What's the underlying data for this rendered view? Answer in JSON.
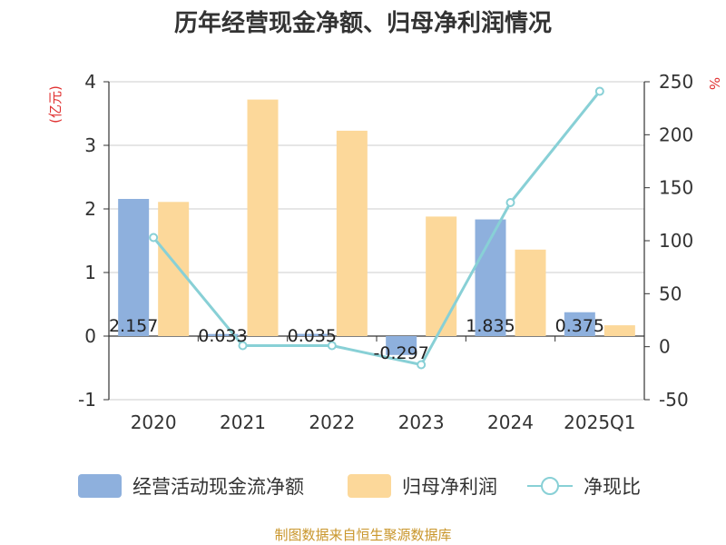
{
  "chart_data": {
    "type": "bar",
    "title": "历年经营现金净额、归母净利润情况",
    "categories": [
      "2020",
      "2021",
      "2022",
      "2023",
      "2024",
      "2025Q1"
    ],
    "series": [
      {
        "name": "经营活动现金流净额",
        "type": "bar",
        "axis": "left",
        "color": "#8eb0dd",
        "values": [
          2.157,
          0.033,
          0.035,
          -0.297,
          1.835,
          0.375
        ],
        "labels": [
          "2.157",
          "0.033",
          "0.035",
          "-0.297",
          "1.835",
          "0.375"
        ]
      },
      {
        "name": "归母净利润",
        "type": "bar",
        "axis": "left",
        "color": "#fcd89a",
        "values": [
          2.11,
          3.72,
          3.23,
          1.88,
          1.36,
          0.17
        ]
      },
      {
        "name": "净现比",
        "type": "line",
        "axis": "right",
        "color": "#88d0d6",
        "values": [
          103,
          1,
          1,
          -17,
          136,
          241
        ]
      }
    ],
    "y_left": {
      "unit": "(亿元)",
      "lim": [
        -1,
        4
      ],
      "ticks": [
        "4",
        "3",
        "2",
        "1",
        "0",
        "-1"
      ],
      "tick_values": [
        4,
        3,
        2,
        1,
        0,
        -1
      ]
    },
    "y_right": {
      "unit": "%",
      "lim": [
        -50,
        250
      ],
      "ticks": [
        "250",
        "200",
        "150",
        "100",
        "50",
        "0",
        "-50"
      ],
      "tick_values": [
        250,
        200,
        150,
        100,
        50,
        0,
        -50
      ]
    },
    "grid": true,
    "legend_position": "bottom"
  },
  "source": "制图数据来自恒生聚源数据库"
}
